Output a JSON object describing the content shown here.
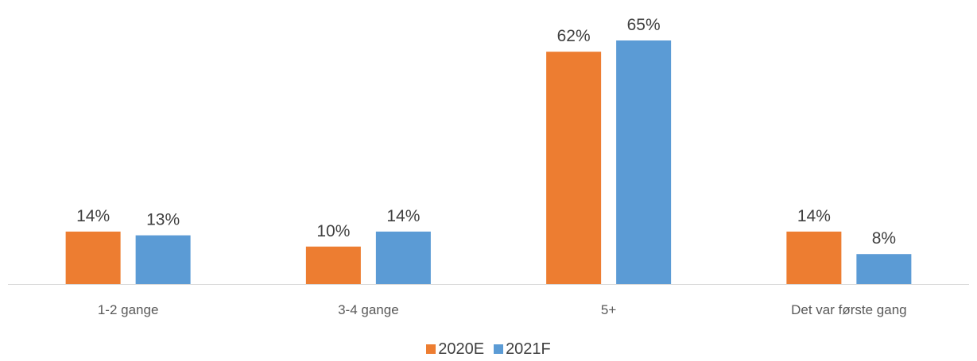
{
  "chart_data": {
    "type": "bar",
    "categories": [
      "1-2 gange",
      "3-4 gange",
      "5+",
      "Det var første gang"
    ],
    "series": [
      {
        "name": "2020E",
        "values": [
          14,
          10,
          62,
          14
        ],
        "labels": [
          "14%",
          "10%",
          "62%",
          "14%"
        ],
        "color": "#ED7D31"
      },
      {
        "name": "2021F",
        "values": [
          13,
          14,
          65,
          8
        ],
        "labels": [
          "13%",
          "14%",
          "65%",
          "8%"
        ],
        "color": "#5B9BD5"
      }
    ],
    "ylim": [
      0,
      65
    ],
    "value_unit": "%",
    "grid": false,
    "legend_position": "bottom"
  }
}
